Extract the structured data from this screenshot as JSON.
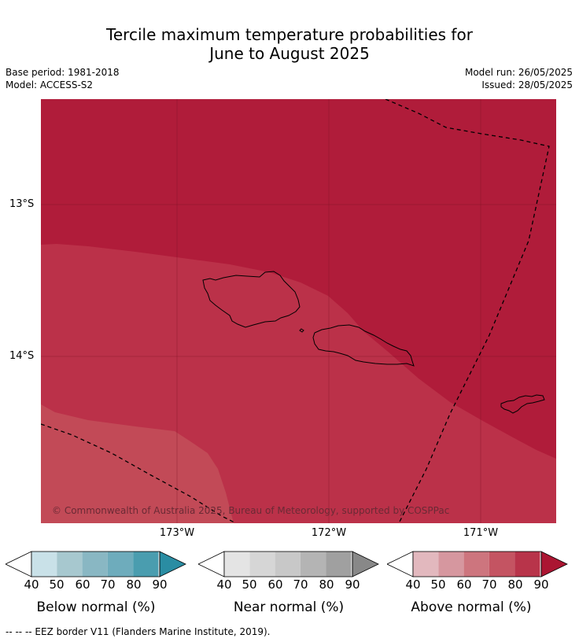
{
  "title": {
    "line1": "Tercile maximum temperature probabilities for",
    "line2": "June to August 2025"
  },
  "meta_left": {
    "base_period": "Base period: 1981-2018",
    "model": "Model: ACCESS-S2"
  },
  "meta_right": {
    "model_run": "Model run: 26/05/2025",
    "issued": "Issued: 28/05/2025"
  },
  "map": {
    "lat_labels": [
      "13°S",
      "14°S"
    ],
    "lon_labels": [
      "173°W",
      "172°W",
      "171°W"
    ],
    "copyright": "© Commonwealth of Australia 2025, Bureau of Meteorology, supported by COSPPac",
    "colors": {
      "above_90": "#b01c3a",
      "above_80": "#bb3149",
      "above_70": "#c24a57"
    }
  },
  "legends": [
    {
      "title": "Below normal (%)",
      "ticks": [
        "40",
        "50",
        "60",
        "70",
        "80",
        "90"
      ],
      "colors": [
        "#c9e1e8",
        "#a7c8cf",
        "#89b7c3",
        "#6eacbc",
        "#4a9daf",
        "#2a8da3"
      ]
    },
    {
      "title": "Near normal (%)",
      "ticks": [
        "40",
        "50",
        "60",
        "70",
        "80",
        "90"
      ],
      "colors": [
        "#e4e4e4",
        "#d6d6d6",
        "#c8c8c8",
        "#b4b4b4",
        "#a0a0a0",
        "#888888"
      ]
    },
    {
      "title": "Above normal (%)",
      "ticks": [
        "40",
        "50",
        "60",
        "70",
        "80",
        "90"
      ],
      "colors": [
        "#e2b8be",
        "#d6979f",
        "#cd757e",
        "#c45462",
        "#b8344a",
        "#ab1532"
      ]
    }
  ],
  "footnote": "-- -- -- EEZ border V11 (Flanders Marine Institute, 2019)."
}
